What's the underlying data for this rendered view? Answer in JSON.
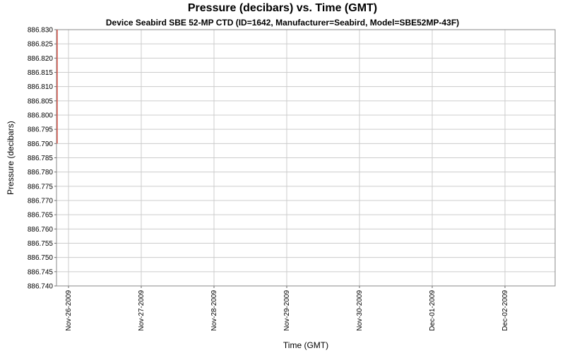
{
  "chart_data": {
    "type": "line",
    "title": "Pressure (decibars) vs. Time (GMT)",
    "subtitle": "Device Seabird SBE 52-MP CTD (ID=1642, Manufacturer=Seabird, Model=SBE52MP-43F)",
    "xlabel": "Time (GMT)",
    "ylabel": "Pressure (decibars)",
    "x_tick_labels": [
      "Nov-26-2009",
      "Nov-27-2009",
      "Nov-28-2009",
      "Nov-29-2009",
      "Nov-30-2009",
      "Dec-01-2009",
      "Dec-02-2009"
    ],
    "ylim": [
      886.74,
      886.83
    ],
    "y_tick_step": 0.005,
    "y_tick_decimals": 3,
    "grid": true,
    "legend_position": "none",
    "series": [
      {
        "name": "Pressure",
        "color": "#dd4b3e",
        "shape": "vertical-segment-at-series-start",
        "x": "Nov-26-2009",
        "y_min": 886.79,
        "y_max": 886.83
      }
    ],
    "colors": {
      "background": "#ffffff",
      "grid": "#cccccc",
      "plot_border": "#888888",
      "tick_mark": "#666666",
      "tick_text": "#000000"
    }
  }
}
